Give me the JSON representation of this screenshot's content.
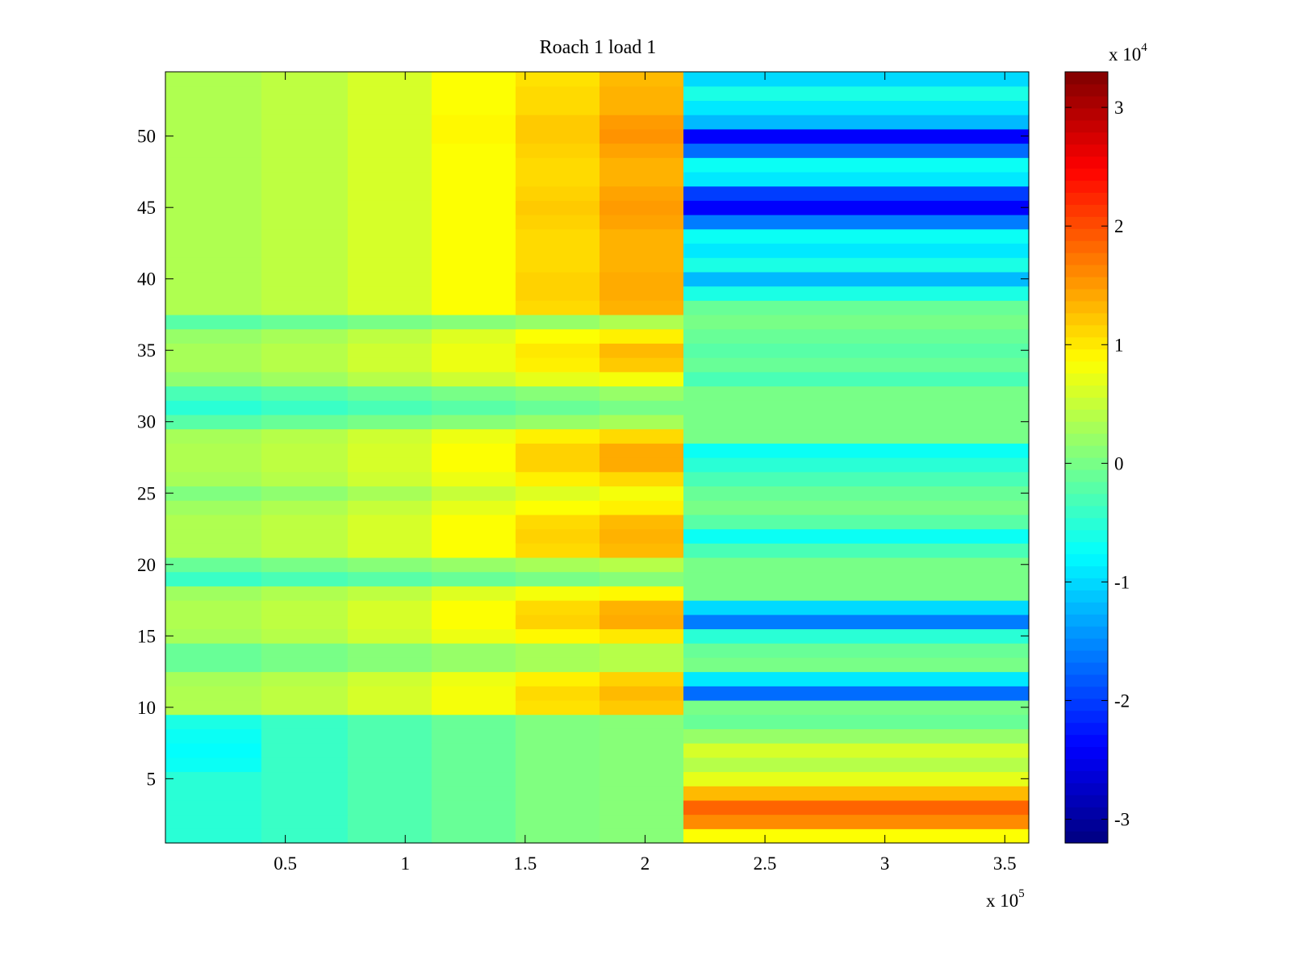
{
  "chart_data": {
    "type": "heatmap",
    "title": "Roach 1 load 1",
    "xlabel": "",
    "ylabel": "",
    "x_multiplier_label": "x 10",
    "x_multiplier_exponent": "5",
    "xlim": [
      0,
      3.6
    ],
    "ylim": [
      0.5,
      54.5
    ],
    "x_ticks": [
      0.5,
      1,
      1.5,
      2,
      2.5,
      3,
      3.5
    ],
    "x_tick_labels": [
      "0.5",
      "1",
      "1.5",
      "2",
      "2.5",
      "3",
      "3.5"
    ],
    "y_ticks": [
      5,
      10,
      15,
      20,
      25,
      30,
      35,
      40,
      45,
      50
    ],
    "y_tick_labels": [
      "5",
      "10",
      "15",
      "20",
      "25",
      "30",
      "35",
      "40",
      "45",
      "50"
    ],
    "colorbar": {
      "colormap": "jet",
      "multiplier_label": "x 10",
      "multiplier_exponent": "4",
      "clim": [
        -3.2,
        3.3
      ],
      "ticks": [
        -3,
        -2,
        -1,
        0,
        1,
        2,
        3
      ],
      "tick_labels": [
        "-3",
        "-2",
        "-1",
        "0",
        "1",
        "2",
        "3"
      ]
    },
    "x_bands": [
      {
        "x0": 0.0,
        "x1": 0.4
      },
      {
        "x0": 0.4,
        "x1": 0.76
      },
      {
        "x0": 0.76,
        "x1": 1.11
      },
      {
        "x0": 1.11,
        "x1": 1.46
      },
      {
        "x0": 1.46,
        "x1": 1.81
      },
      {
        "x0": 1.81,
        "x1": 2.16
      },
      {
        "x0": 2.16,
        "x1": 3.6
      }
    ],
    "rows": [
      {
        "row": 1,
        "values": [
          -0.5,
          -0.4,
          -0.25,
          -0.1,
          0.05,
          0.1,
          0.85
        ]
      },
      {
        "row": 2,
        "values": [
          -0.5,
          -0.4,
          -0.25,
          -0.1,
          0.05,
          0.1,
          1.6
        ]
      },
      {
        "row": 3,
        "values": [
          -0.5,
          -0.4,
          -0.25,
          -0.1,
          0.05,
          0.1,
          1.85
        ]
      },
      {
        "row": 4,
        "values": [
          -0.5,
          -0.4,
          -0.25,
          -0.1,
          0.05,
          0.1,
          1.3
        ]
      },
      {
        "row": 5,
        "values": [
          -0.5,
          -0.4,
          -0.25,
          -0.1,
          0.05,
          0.1,
          0.7
        ]
      },
      {
        "row": 6,
        "values": [
          -0.7,
          -0.4,
          -0.25,
          -0.1,
          0.05,
          0.1,
          0.4
        ]
      },
      {
        "row": 7,
        "values": [
          -0.75,
          -0.4,
          -0.25,
          -0.1,
          0.05,
          0.1,
          0.6
        ]
      },
      {
        "row": 8,
        "values": [
          -0.7,
          -0.4,
          -0.25,
          -0.1,
          0.05,
          0.1,
          0.2
        ]
      },
      {
        "row": 9,
        "values": [
          -0.6,
          -0.4,
          -0.25,
          -0.1,
          0.05,
          0.1,
          -0.1
        ]
      },
      {
        "row": 10,
        "values": [
          0.35,
          0.45,
          0.6,
          0.8,
          1.05,
          1.2,
          0.0
        ]
      },
      {
        "row": 11,
        "values": [
          0.35,
          0.45,
          0.6,
          0.8,
          1.1,
          1.3,
          -1.7
        ]
      },
      {
        "row": 12,
        "values": [
          0.3,
          0.4,
          0.55,
          0.75,
          0.95,
          1.15,
          -0.9
        ]
      },
      {
        "row": 13,
        "values": [
          -0.1,
          0.0,
          0.1,
          0.2,
          0.3,
          0.4,
          0.0
        ]
      },
      {
        "row": 14,
        "values": [
          -0.1,
          0.0,
          0.1,
          0.2,
          0.3,
          0.4,
          -0.1
        ]
      },
      {
        "row": 15,
        "values": [
          0.3,
          0.4,
          0.55,
          0.75,
          0.9,
          1.0,
          -0.5
        ]
      },
      {
        "row": 16,
        "values": [
          0.35,
          0.45,
          0.6,
          0.85,
          1.15,
          1.4,
          -1.6
        ]
      },
      {
        "row": 17,
        "values": [
          0.35,
          0.45,
          0.6,
          0.85,
          1.1,
          1.35,
          -1.0
        ]
      },
      {
        "row": 18,
        "values": [
          0.25,
          0.35,
          0.45,
          0.65,
          0.8,
          0.9,
          0.0
        ]
      },
      {
        "row": 19,
        "values": [
          -0.4,
          -0.3,
          -0.2,
          -0.1,
          0.0,
          0.1,
          0.0
        ]
      },
      {
        "row": 20,
        "values": [
          -0.1,
          0.0,
          0.1,
          0.2,
          0.3,
          0.4,
          0.0
        ]
      },
      {
        "row": 21,
        "values": [
          0.35,
          0.45,
          0.6,
          0.85,
          1.1,
          1.3,
          -0.3
        ]
      },
      {
        "row": 22,
        "values": [
          0.35,
          0.45,
          0.6,
          0.85,
          1.15,
          1.35,
          -0.7
        ]
      },
      {
        "row": 23,
        "values": [
          0.35,
          0.45,
          0.6,
          0.85,
          1.1,
          1.3,
          -0.2
        ]
      },
      {
        "row": 24,
        "values": [
          0.25,
          0.35,
          0.5,
          0.7,
          0.85,
          0.95,
          0.0
        ]
      },
      {
        "row": 25,
        "values": [
          0.05,
          0.15,
          0.3,
          0.5,
          0.65,
          0.8,
          -0.1
        ]
      },
      {
        "row": 26,
        "values": [
          0.3,
          0.4,
          0.55,
          0.75,
          0.95,
          1.1,
          -0.3
        ]
      },
      {
        "row": 27,
        "values": [
          0.35,
          0.45,
          0.6,
          0.85,
          1.15,
          1.4,
          -0.5
        ]
      },
      {
        "row": 28,
        "values": [
          0.35,
          0.45,
          0.6,
          0.85,
          1.15,
          1.4,
          -0.7
        ]
      },
      {
        "row": 29,
        "values": [
          0.3,
          0.4,
          0.55,
          0.75,
          0.95,
          1.1,
          0.0
        ]
      },
      {
        "row": 30,
        "values": [
          -0.2,
          -0.1,
          0.0,
          0.1,
          0.2,
          0.3,
          0.0
        ]
      },
      {
        "row": 31,
        "values": [
          -0.5,
          -0.4,
          -0.3,
          -0.2,
          -0.1,
          0.0,
          0.0
        ]
      },
      {
        "row": 32,
        "values": [
          -0.3,
          -0.2,
          -0.1,
          0.0,
          0.1,
          0.2,
          0.0
        ]
      },
      {
        "row": 33,
        "values": [
          0.15,
          0.25,
          0.4,
          0.55,
          0.7,
          0.8,
          -0.3
        ]
      },
      {
        "row": 34,
        "values": [
          0.3,
          0.4,
          0.55,
          0.75,
          0.95,
          1.2,
          -0.1
        ]
      },
      {
        "row": 35,
        "values": [
          0.3,
          0.4,
          0.55,
          0.75,
          1.0,
          1.3,
          -0.2
        ]
      },
      {
        "row": 36,
        "values": [
          0.2,
          0.3,
          0.45,
          0.65,
          0.85,
          0.95,
          -0.1
        ]
      },
      {
        "row": 37,
        "values": [
          -0.2,
          -0.1,
          0.0,
          0.1,
          0.2,
          0.35,
          0.0
        ]
      },
      {
        "row": 38,
        "values": [
          0.35,
          0.45,
          0.6,
          0.85,
          1.1,
          1.35,
          -0.1
        ]
      },
      {
        "row": 39,
        "values": [
          0.35,
          0.45,
          0.6,
          0.85,
          1.15,
          1.4,
          -0.6
        ]
      },
      {
        "row": 40,
        "values": [
          0.35,
          0.45,
          0.6,
          0.85,
          1.15,
          1.4,
          -1.2
        ]
      },
      {
        "row": 41,
        "values": [
          0.35,
          0.45,
          0.6,
          0.85,
          1.1,
          1.35,
          -0.6
        ]
      },
      {
        "row": 42,
        "values": [
          0.35,
          0.45,
          0.6,
          0.85,
          1.1,
          1.35,
          -0.9
        ]
      },
      {
        "row": 43,
        "values": [
          0.35,
          0.45,
          0.6,
          0.85,
          1.1,
          1.35,
          -0.7
        ]
      },
      {
        "row": 44,
        "values": [
          0.35,
          0.45,
          0.6,
          0.85,
          1.15,
          1.45,
          -1.6
        ]
      },
      {
        "row": 45,
        "values": [
          0.35,
          0.45,
          0.6,
          0.85,
          1.2,
          1.5,
          -2.4
        ]
      },
      {
        "row": 46,
        "values": [
          0.35,
          0.45,
          0.6,
          0.85,
          1.15,
          1.45,
          -2.0
        ]
      },
      {
        "row": 47,
        "values": [
          0.35,
          0.45,
          0.6,
          0.85,
          1.1,
          1.35,
          -0.9
        ]
      },
      {
        "row": 48,
        "values": [
          0.35,
          0.45,
          0.6,
          0.85,
          1.1,
          1.35,
          -0.7
        ]
      },
      {
        "row": 49,
        "values": [
          0.35,
          0.45,
          0.6,
          0.85,
          1.15,
          1.45,
          -1.7
        ]
      },
      {
        "row": 50,
        "values": [
          0.35,
          0.45,
          0.6,
          0.9,
          1.2,
          1.55,
          -2.4
        ]
      },
      {
        "row": 51,
        "values": [
          0.35,
          0.45,
          0.6,
          0.9,
          1.2,
          1.5,
          -1.2
        ]
      },
      {
        "row": 52,
        "values": [
          0.35,
          0.45,
          0.6,
          0.85,
          1.1,
          1.35,
          -0.9
        ]
      },
      {
        "row": 53,
        "values": [
          0.35,
          0.45,
          0.6,
          0.85,
          1.1,
          1.35,
          -0.6
        ]
      },
      {
        "row": 54,
        "values": [
          0.35,
          0.45,
          0.6,
          0.85,
          1.05,
          1.3,
          -1.0
        ]
      }
    ]
  }
}
